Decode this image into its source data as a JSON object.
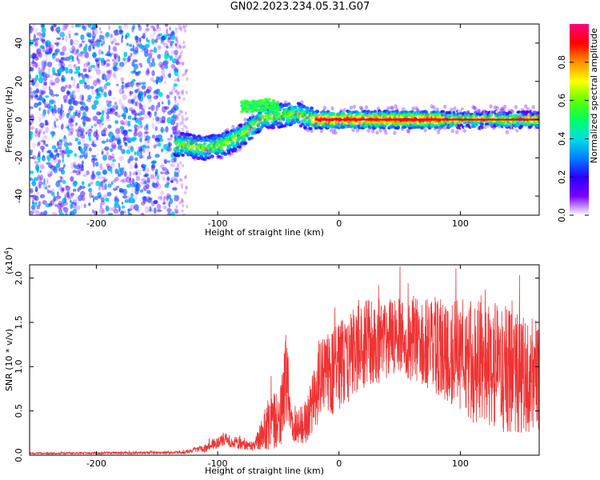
{
  "title": "GN02.2023.234.05.31.G07",
  "chart_data": [
    {
      "type": "heatmap",
      "title": "GN02.2023.234.05.31.G07",
      "xlabel": "Height of straight line (km)",
      "ylabel": "Frequency (Hz)",
      "xlim": [
        -255,
        165
      ],
      "ylim": [
        -50,
        50
      ],
      "xticks": [
        -200,
        -100,
        0,
        100
      ],
      "yticks": [
        -40,
        -20,
        0,
        20,
        40
      ],
      "colorbar": {
        "label": "Normalized spectral amplitude",
        "range": [
          0.0,
          1.0
        ],
        "ticks": [
          "0.0",
          "0.2",
          "0.4",
          "0.6",
          "0.8"
        ],
        "colors": [
          "#ffffff",
          "#7a00ff",
          "#2a00ff",
          "#0080ff",
          "#00e0e0",
          "#00ff60",
          "#60ff00",
          "#ffff00",
          "#ff9000",
          "#ff0000",
          "#ff0080"
        ]
      },
      "ridge": [
        {
          "x": -130,
          "y": -13
        },
        {
          "x": -110,
          "y": -15
        },
        {
          "x": -95,
          "y": -13
        },
        {
          "x": -82,
          "y": -9
        },
        {
          "x": -72,
          "y": -4
        },
        {
          "x": -62,
          "y": 1
        },
        {
          "x": -50,
          "y": 2
        },
        {
          "x": -35,
          "y": 3
        },
        {
          "x": -20,
          "y": 0
        },
        {
          "x": 0,
          "y": 0
        },
        {
          "x": 80,
          "y": 0
        },
        {
          "x": 165,
          "y": 0
        }
      ],
      "upper_branch": [
        {
          "x": -80,
          "y": 7
        },
        {
          "x": -70,
          "y": 7
        },
        {
          "x": -58,
          "y": 8
        },
        {
          "x": -50,
          "y": 6
        }
      ]
    },
    {
      "type": "line",
      "xlabel": "Height of straight line (km)",
      "ylabel": "SNR (10 * v/v)",
      "scale_note": "(x10",
      "scale_exp": "4",
      "scale_close": ")",
      "xlim": [
        -255,
        165
      ],
      "ylim": [
        0,
        2.15
      ],
      "xticks": [
        -200,
        -100,
        0,
        100
      ],
      "yticks": [
        "0.0",
        "0.5",
        "1.0",
        "1.5",
        "2.0"
      ],
      "series": [
        {
          "color": "#ee3333",
          "envelope": [
            {
              "x": -255,
              "mean": 0.02,
              "amp": 0.01
            },
            {
              "x": -130,
              "mean": 0.03,
              "amp": 0.015
            },
            {
              "x": -110,
              "mean": 0.08,
              "amp": 0.05
            },
            {
              "x": -95,
              "mean": 0.18,
              "amp": 0.08
            },
            {
              "x": -80,
              "mean": 0.12,
              "amp": 0.06
            },
            {
              "x": -70,
              "mean": 0.1,
              "amp": 0.05
            },
            {
              "x": -58,
              "mean": 0.35,
              "amp": 0.3
            },
            {
              "x": -48,
              "mean": 0.45,
              "amp": 0.35
            },
            {
              "x": -44,
              "mean": 0.9,
              "amp": 0.5
            },
            {
              "x": -38,
              "mean": 0.3,
              "amp": 0.15
            },
            {
              "x": -28,
              "mean": 0.35,
              "amp": 0.25
            },
            {
              "x": -15,
              "mean": 0.85,
              "amp": 0.45
            },
            {
              "x": 0,
              "mean": 1.0,
              "amp": 0.5
            },
            {
              "x": 20,
              "mean": 1.25,
              "amp": 0.5
            },
            {
              "x": 50,
              "mean": 1.35,
              "amp": 0.45
            },
            {
              "x": 80,
              "mean": 1.25,
              "amp": 0.55
            },
            {
              "x": 110,
              "mean": 1.05,
              "amp": 0.7
            },
            {
              "x": 140,
              "mean": 0.95,
              "amp": 0.75
            },
            {
              "x": 165,
              "mean": 0.85,
              "amp": 0.65
            }
          ]
        }
      ]
    }
  ]
}
